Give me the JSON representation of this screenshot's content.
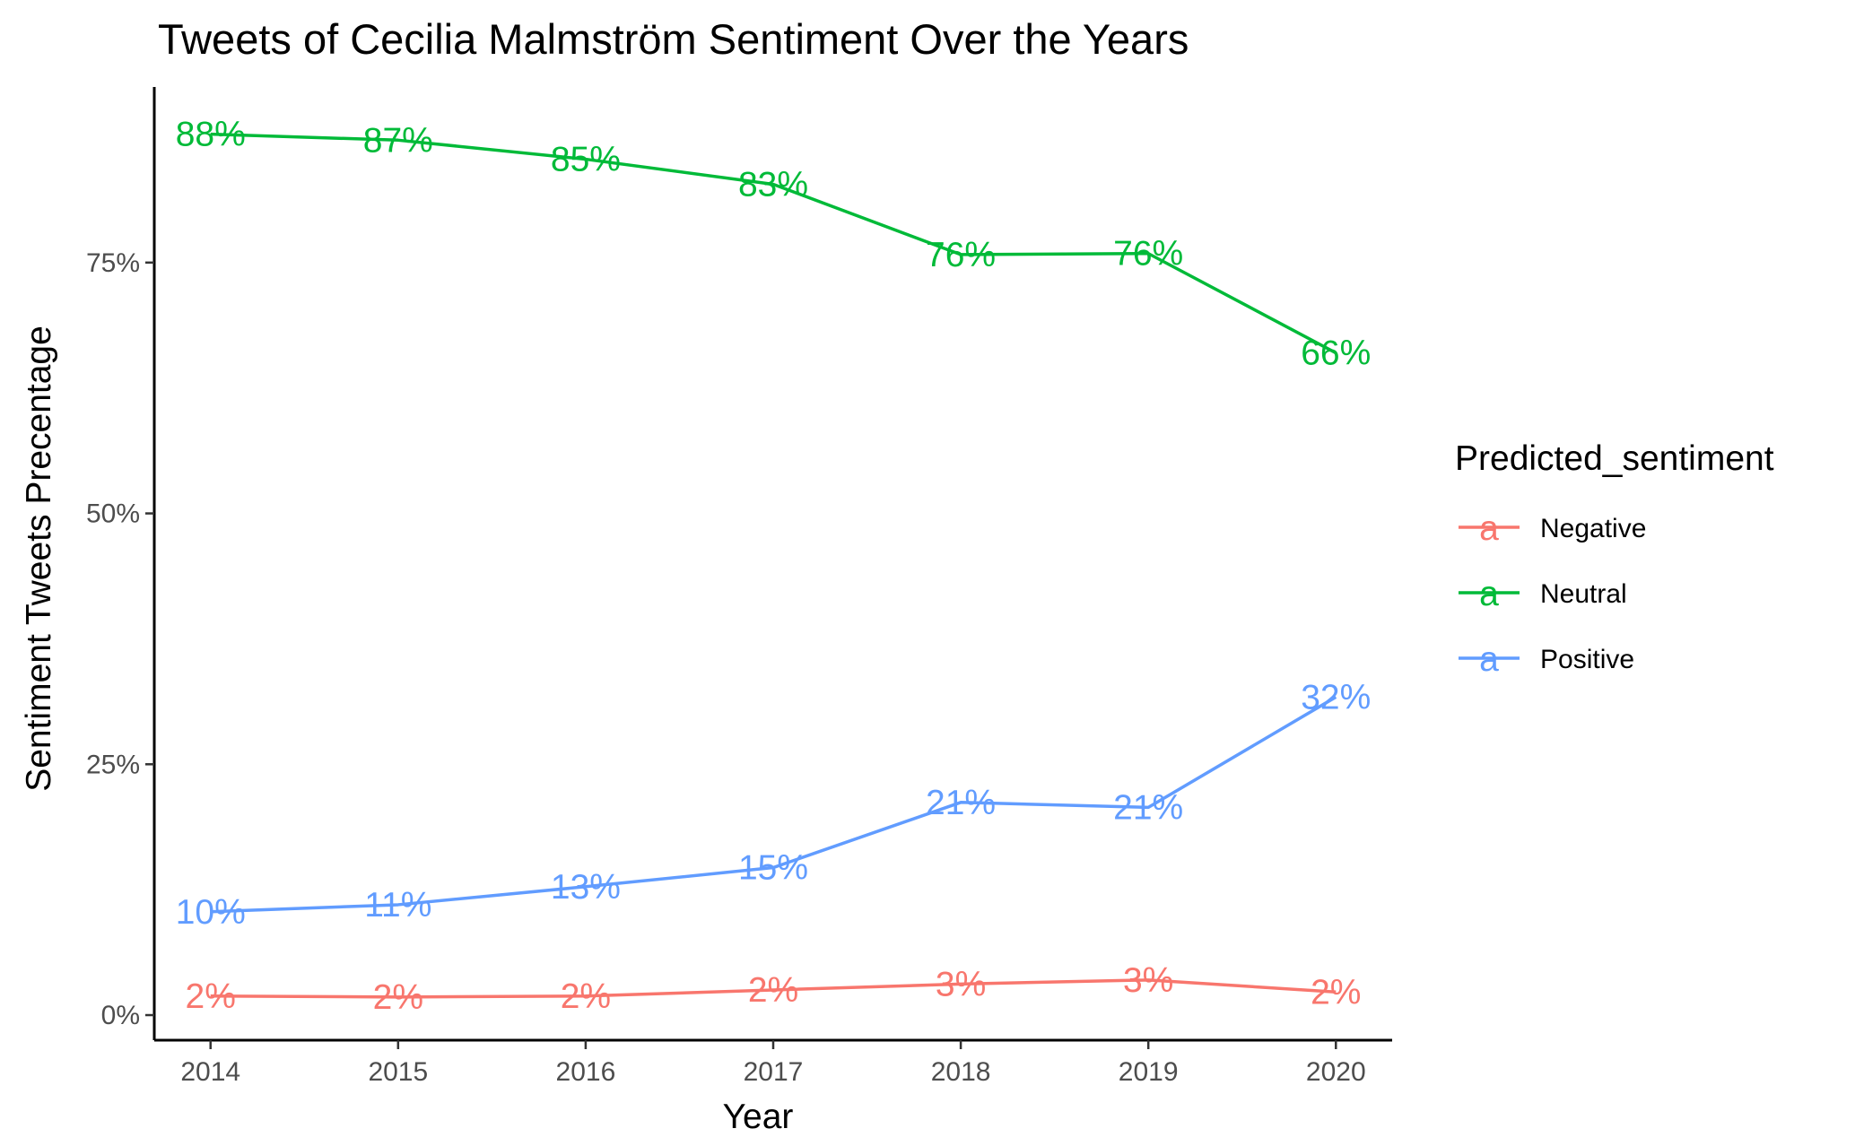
{
  "chart_data": {
    "type": "line",
    "title": "Tweets of Cecilia Malmström Sentiment Over the Years",
    "xlabel": "Year",
    "ylabel": "Sentiment Tweets Precentage",
    "x": [
      2014,
      2015,
      2016,
      2017,
      2018,
      2019,
      2020
    ],
    "x_ticks": [
      "2014",
      "2015",
      "2016",
      "2017",
      "2018",
      "2019",
      "2020"
    ],
    "y_ticks": [
      0,
      25,
      50,
      75
    ],
    "y_tick_labels": [
      "0%",
      "25%",
      "50%",
      "75%"
    ],
    "xlim": [
      2013.7,
      2020.3
    ],
    "ylim": [
      -2.5,
      92.5
    ],
    "grid": false,
    "legend": {
      "title": "Predicted_sentiment",
      "position": "right",
      "key_glyph": "a"
    },
    "series": [
      {
        "name": "Negative",
        "color": "#F8766D",
        "values": [
          1.9,
          1.8,
          1.9,
          2.5,
          3.1,
          3.5,
          2.3
        ],
        "labels": [
          "2%",
          "2%",
          "2%",
          "2%",
          "3%",
          "3%",
          "2%"
        ]
      },
      {
        "name": "Neutral",
        "color": "#00BA38",
        "values": [
          87.8,
          87.2,
          85.3,
          82.8,
          75.8,
          75.9,
          66.0
        ],
        "labels": [
          "88%",
          "87%",
          "85%",
          "83%",
          "76%",
          "76%",
          "66%"
        ]
      },
      {
        "name": "Positive",
        "color": "#619CFF",
        "values": [
          10.3,
          11.0,
          12.8,
          14.7,
          21.2,
          20.7,
          31.7
        ],
        "labels": [
          "10%",
          "11%",
          "13%",
          "15%",
          "21%",
          "21%",
          "32%"
        ]
      }
    ]
  }
}
